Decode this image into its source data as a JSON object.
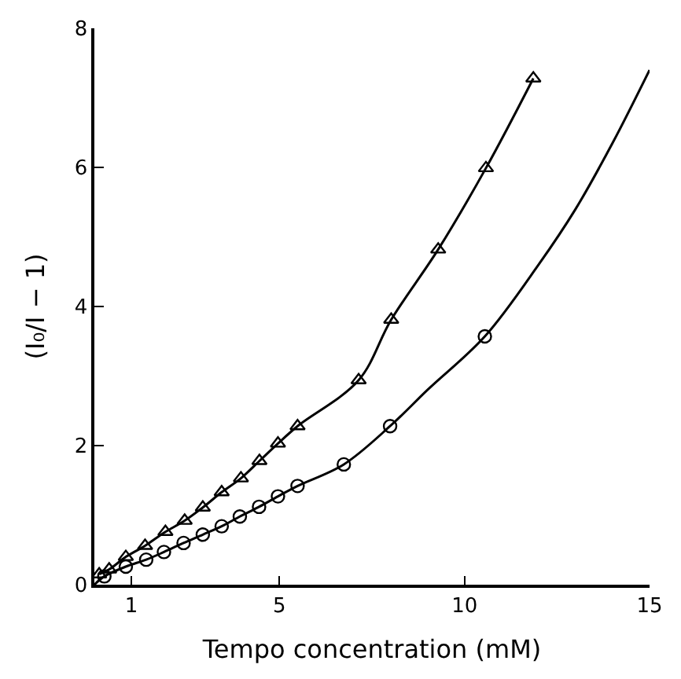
{
  "chart_data": {
    "type": "line",
    "xlabel": "Tempo concentration (mM)",
    "ylabel": "(I₀/I − 1)",
    "xlim": [
      0,
      15
    ],
    "ylim": [
      0,
      8
    ],
    "xticks": [
      1,
      5,
      10,
      15
    ],
    "yticks": [
      0,
      2,
      4,
      6,
      8
    ],
    "series": [
      {
        "marker": "triangle",
        "color": "#000000",
        "x": [
          0.13,
          0.4,
          0.85,
          1.37,
          1.92,
          2.44,
          2.93,
          3.44,
          3.96,
          4.46,
          4.96,
          5.49,
          7.14,
          8.02,
          9.29,
          10.58,
          11.86
        ],
        "values": [
          0.15,
          0.22,
          0.4,
          0.56,
          0.76,
          0.92,
          1.11,
          1.33,
          1.53,
          1.78,
          2.03,
          2.28,
          2.94,
          3.81,
          4.82,
          5.99,
          7.28
        ]
      },
      {
        "type": "scatter",
        "marker": "circle",
        "color": "#000000",
        "x": [
          0.27,
          0.85,
          1.4,
          1.88,
          2.41,
          2.93,
          3.44,
          3.93,
          4.45,
          4.96,
          5.49,
          6.74,
          7.99,
          10.55
        ],
        "values": [
          0.12,
          0.26,
          0.36,
          0.47,
          0.6,
          0.72,
          0.84,
          0.98,
          1.12,
          1.27,
          1.42,
          1.73,
          2.28,
          3.57
        ]
      },
      {
        "marker": "none",
        "color": "#000000",
        "x": [
          0,
          0.27,
          0.85,
          1.4,
          1.88,
          2.41,
          2.93,
          3.44,
          3.93,
          4.45,
          4.96,
          5.49,
          6.74,
          7.99,
          9,
          10.55,
          12,
          13,
          14,
          15
        ],
        "values": [
          0,
          0.12,
          0.26,
          0.36,
          0.47,
          0.6,
          0.72,
          0.84,
          0.98,
          1.12,
          1.27,
          1.42,
          1.73,
          2.28,
          2.8,
          3.57,
          4.6,
          5.4,
          6.35,
          7.4
        ]
      }
    ]
  }
}
